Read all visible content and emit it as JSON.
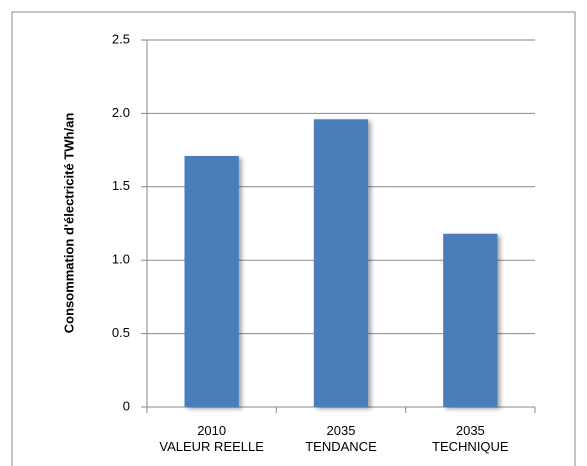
{
  "chart_data": {
    "type": "bar",
    "y_axis_label": "Consommation d'électricité TWh/an",
    "categories": [
      "2010\nVALEUR REELLE",
      "2035\nTENDANCE",
      "2035\nTECHNIQUE"
    ],
    "values": [
      1.71,
      1.96,
      1.18
    ],
    "color": "#4a7ebb",
    "ylim": [
      0,
      2.5
    ],
    "yticks": [
      0,
      0.5,
      {
        "value": 1,
        "label": "1.0"
      },
      1.5,
      {
        "value": 2,
        "label": "2.0"
      },
      2.5
    ],
    "grid": true
  }
}
